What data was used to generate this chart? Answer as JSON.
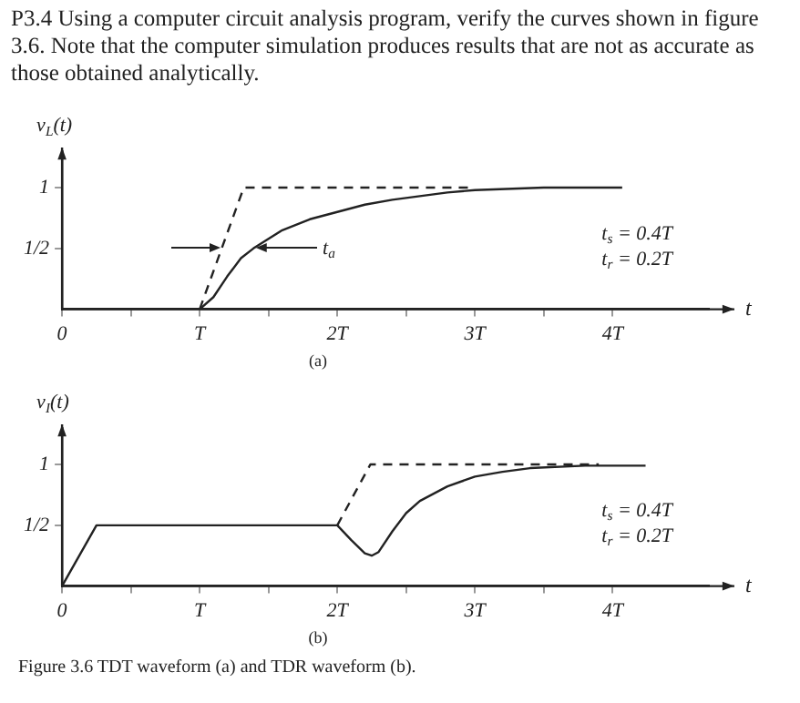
{
  "chart_data": [
    {
      "type": "line",
      "title": "P3.4 Using a computer circuit analysis program, verify the curves shown in figure 3.6. Note that the computer simulation produces results that are not as accurate as those obtained analytically.",
      "subtitle": "(a)",
      "xlabel": "t",
      "ylabel": "v$_{L}$(t)",
      "xlim": [
        0,
        4.7
      ],
      "ylim": [
        0,
        1.3
      ],
      "xticks": [
        0,
        {
          "value": 0.5,
          "label": null
        },
        {
          "value": 1,
          "label": "T"
        },
        {
          "value": 1.5,
          "label": null
        },
        {
          "value": 2,
          "label": "2T"
        },
        {
          "value": 2.5,
          "label": null
        },
        {
          "value": 3,
          "label": "3T"
        },
        {
          "value": 3.5,
          "label": null
        },
        {
          "value": 4,
          "label": "4T"
        }
      ],
      "yticks": [
        {
          "value": 0.5,
          "label": "1/2"
        },
        1
      ],
      "series": [
        {
          "color": "#222222",
          "line_style": "dashed",
          "x": [
            1,
            1.32,
            3.0
          ],
          "values": [
            0,
            1,
            1
          ]
        },
        {
          "color": "#222222",
          "line_style": "solid",
          "x": [
            0,
            1,
            1.1,
            1.2,
            1.3,
            1.39,
            1.5,
            1.6,
            1.8,
            2.0,
            2.2,
            2.4,
            2.6,
            2.8,
            3.0,
            3.5,
            4.07
          ],
          "values": [
            0,
            0,
            0.1,
            0.27,
            0.42,
            0.5,
            0.58,
            0.65,
            0.74,
            0.8,
            0.86,
            0.9,
            0.93,
            0.96,
            0.98,
            1,
            1
          ]
        }
      ],
      "annotations": [
        "t$_{a}$",
        "t$_{s}$ = 0.4T",
        "t$_{r}$ = 0.2T"
      ],
      "grid": false,
      "legend": false,
      "marker": "none"
    },
    {
      "type": "line",
      "subtitle": "(b)",
      "xlabel": "t",
      "ylabel": "v$_{I}$(t)",
      "xlim": [
        0,
        4.7
      ],
      "ylim": [
        0,
        1.3
      ],
      "xticks": [
        0,
        {
          "value": 0.5,
          "label": null
        },
        {
          "value": 1,
          "label": "T"
        },
        {
          "value": 1.5,
          "label": null
        },
        {
          "value": 2,
          "label": "2T"
        },
        {
          "value": 2.5,
          "label": null
        },
        {
          "value": 3,
          "label": "3T"
        },
        {
          "value": 3.5,
          "label": null
        },
        {
          "value": 4,
          "label": "4T"
        }
      ],
      "yticks": [
        {
          "value": 0.5,
          "label": "1/2"
        },
        1
      ],
      "series": [
        {
          "color": "#222222",
          "line_style": "dashed",
          "x": [
            2,
            2.24,
            3.9
          ],
          "values": [
            0.5,
            1,
            1
          ]
        },
        {
          "color": "#222222",
          "line_style": "solid",
          "x": [
            0,
            0.25,
            2.0,
            2.1,
            2.2,
            2.25,
            2.3,
            2.4,
            2.5,
            2.6,
            2.8,
            3.0,
            3.2,
            3.4,
            3.8,
            4.24
          ],
          "values": [
            0,
            0.5,
            0.5,
            0.38,
            0.27,
            0.25,
            0.28,
            0.45,
            0.6,
            0.7,
            0.82,
            0.9,
            0.94,
            0.97,
            0.99,
            0.99
          ]
        }
      ],
      "annotations": [
        "t$_{s}$ = 0.4T",
        "t$_{r}$ = 0.2T"
      ],
      "grid": false,
      "legend": false,
      "marker": "none"
    },
    {
      "type": "other",
      "title": "Figure 3.6 TDT waveform (a) and TDR waveform (b)."
    }
  ]
}
